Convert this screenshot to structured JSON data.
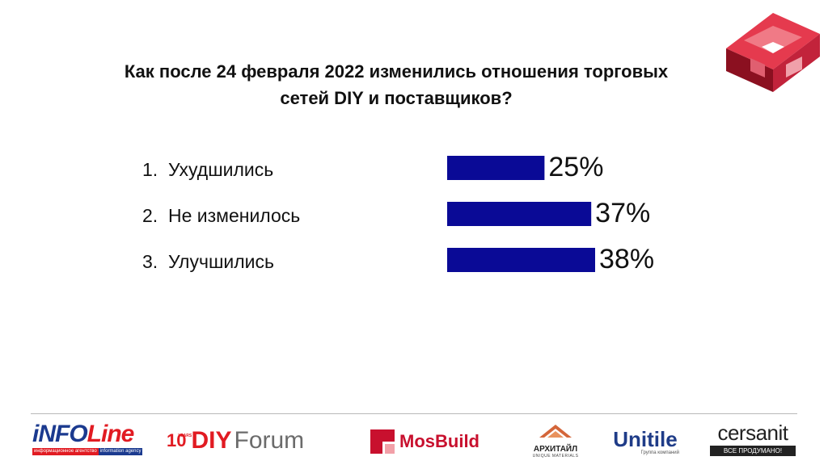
{
  "slide": {
    "title_line1": "Как после 24 февраля 2022 изменились отношения торговых",
    "title_line2": "сетей DIY и поставщиков?"
  },
  "chart_data": {
    "type": "bar",
    "orientation": "horizontal",
    "categories": [
      "1.  Ухудшились",
      "2.  Не изменилось",
      "3.  Улучшились"
    ],
    "values": [
      25,
      37,
      38
    ],
    "value_labels": [
      "25%",
      "37%",
      "38%"
    ],
    "unit": "%",
    "color": "#0a0a96",
    "grid": false,
    "legend": "none",
    "xlim": [
      0,
      38
    ]
  },
  "footer": {
    "infoline": {
      "main_a": "iNFO",
      "main_b": "Line",
      "bar_left": "информационное агентство",
      "bar_right": "information agency"
    },
    "diy_forum": {
      "ten": "10",
      "years": "YEARS",
      "diy": "DIY",
      "forum": "Forum"
    },
    "mosbuild": {
      "text": "MosBuild"
    },
    "arhitail": {
      "name": "АРХИТАЙЛ",
      "sub": "UNIQUE MATERIALS"
    },
    "unitile": {
      "name": "Unitile",
      "sub": "Группа компаний"
    },
    "cersanit": {
      "name": "cersanit",
      "sub": "ВСЕ ПРОДУМАНО!"
    }
  },
  "colors": {
    "accent_red": "#e11b22",
    "bar_blue": "#0a0a96",
    "brand_blue": "#1b3a8f"
  }
}
